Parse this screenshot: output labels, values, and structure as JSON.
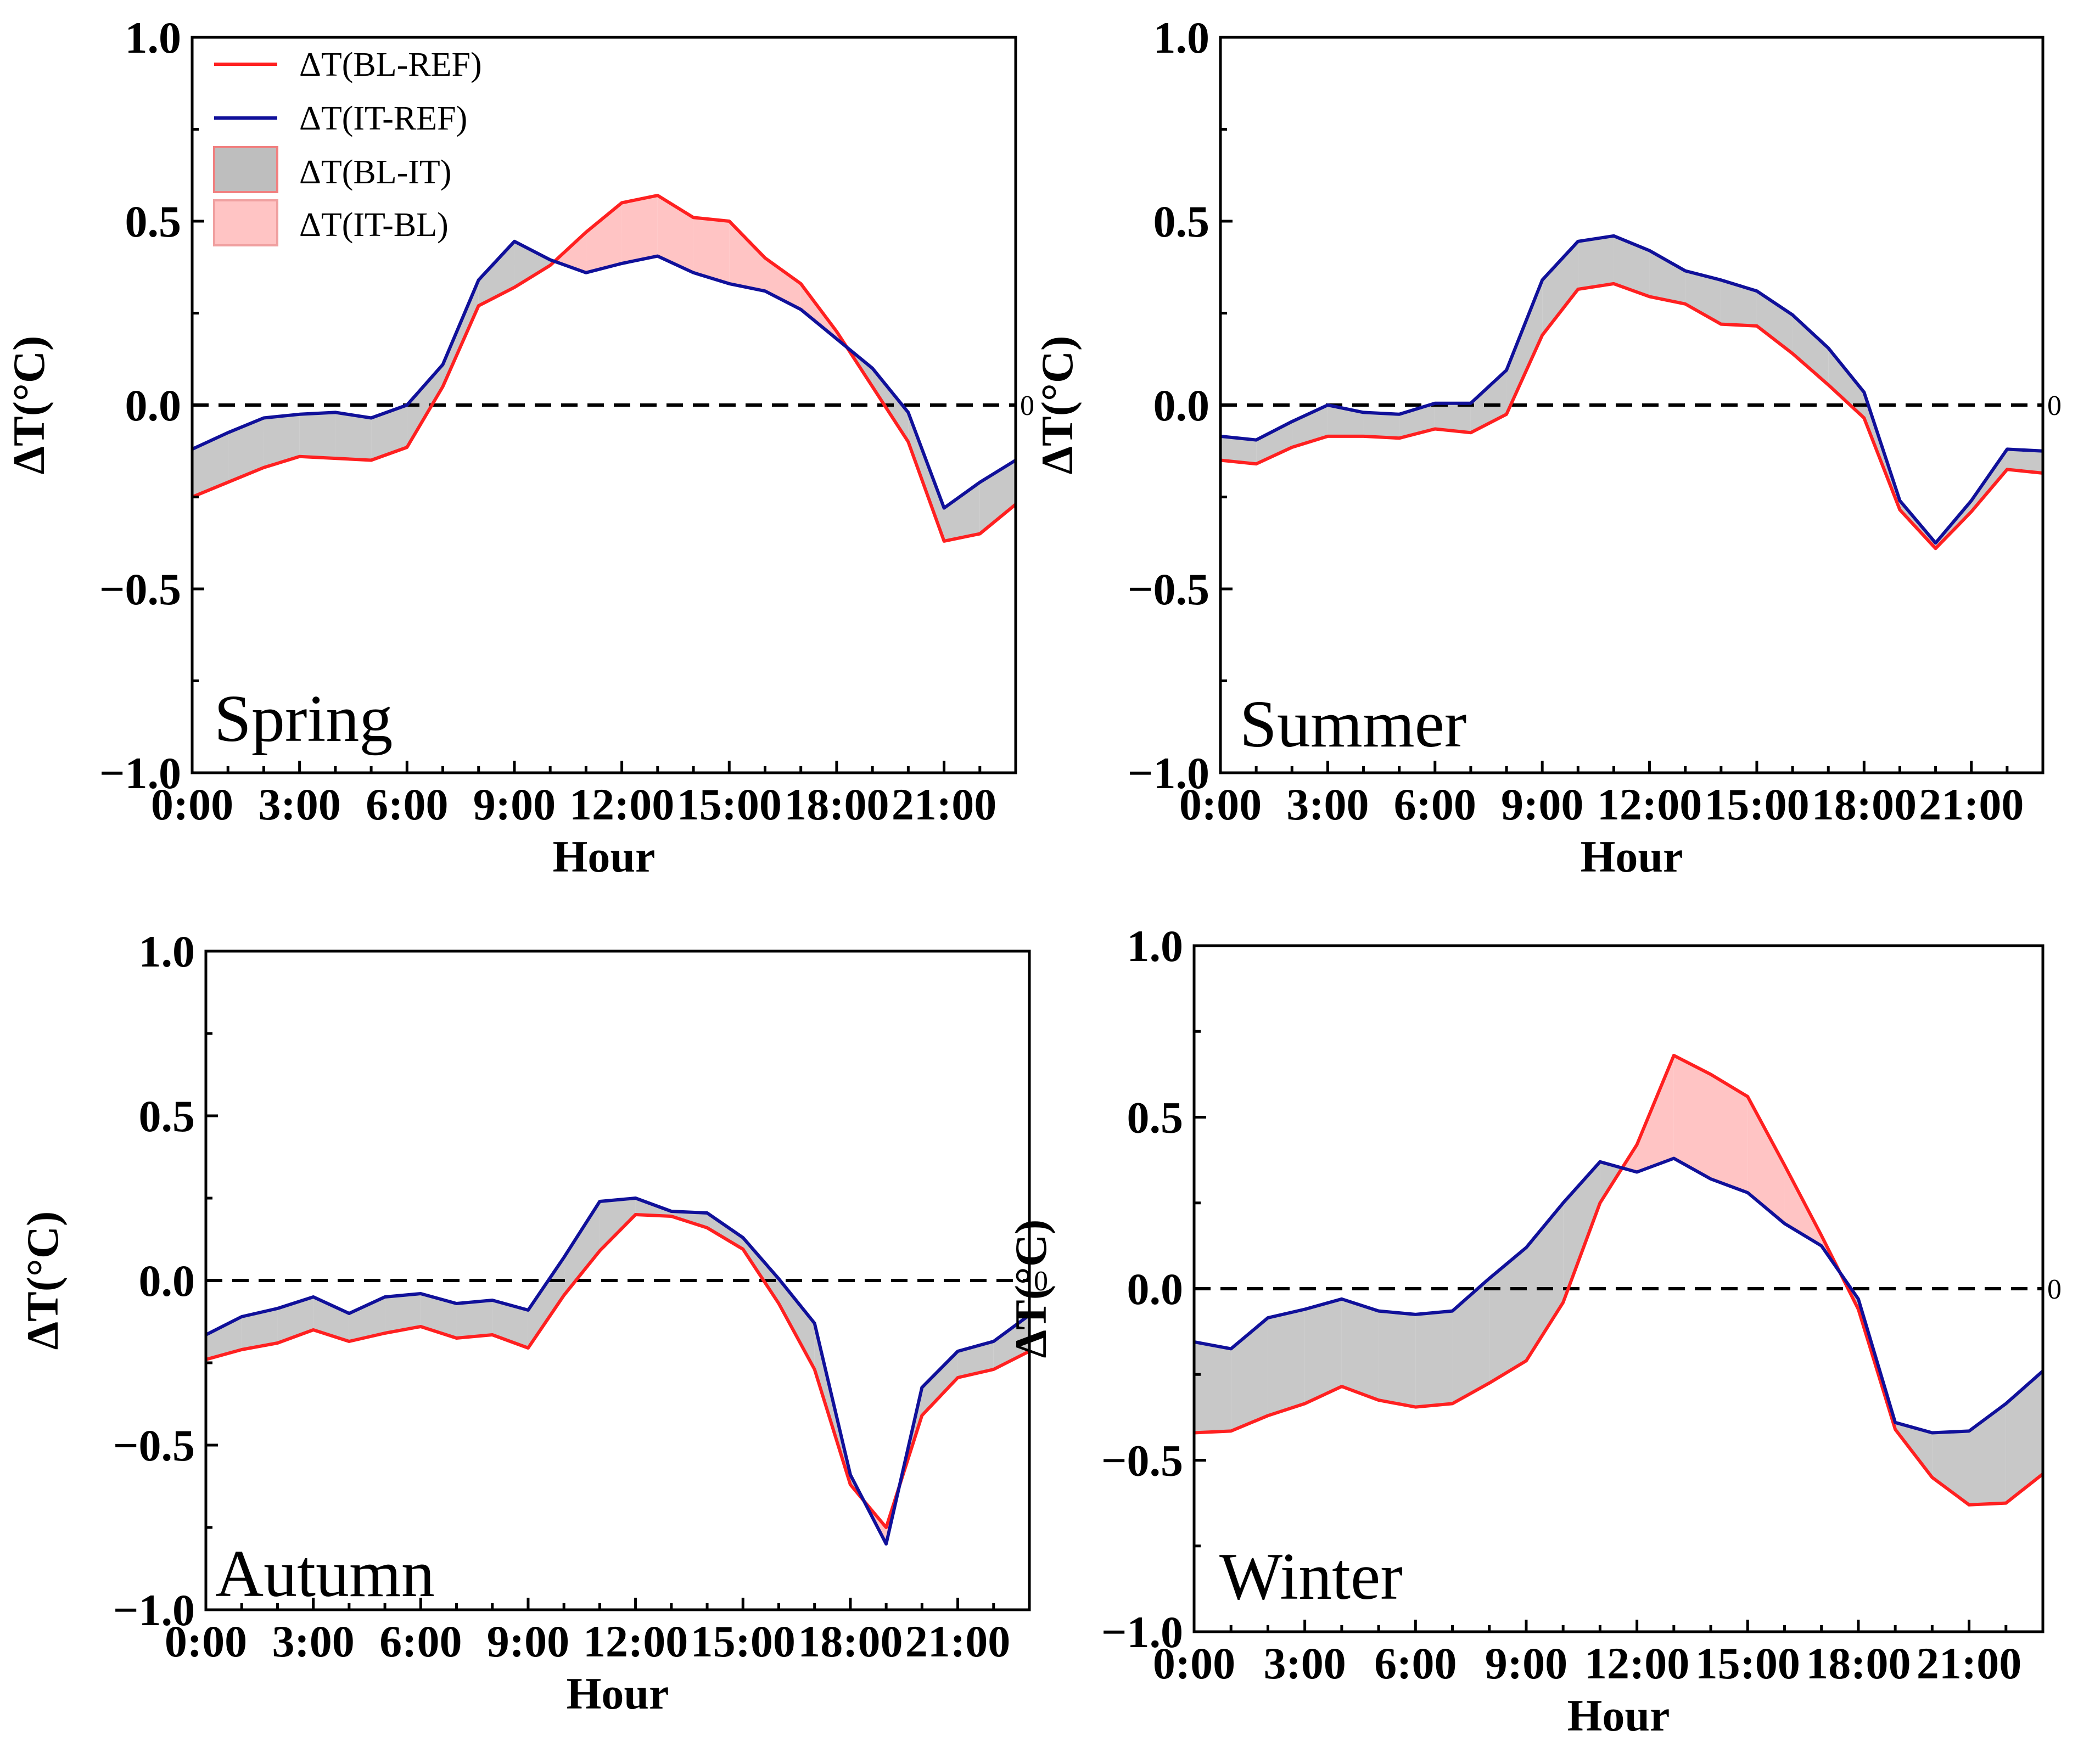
{
  "colors": {
    "bl_ref": "#ff2020",
    "it_ref": "#10109a",
    "bl_it_fill": "#c8c8c8",
    "it_bl_fill": "#ffc4c4",
    "bl_it_legend_fill": "#bebebe",
    "bl_it_legend_edge": "#f08080",
    "it_bl_legend_edge": "#f0a0a0",
    "zero_line": "#000000",
    "axes": "#000000"
  },
  "legend": {
    "bl_ref": "ΔT(BL-REF)",
    "it_ref": "ΔT(IT-REF)",
    "bl_it": "ΔT(BL-IT)",
    "it_bl": "ΔT(IT-BL)"
  },
  "chart_data": [
    {
      "type": "line",
      "panel": "Spring",
      "label": "Spring",
      "xlabel": "Hour",
      "ylabel": "ΔT(°C)",
      "ylim": [
        -1.0,
        1.0
      ],
      "xlim": [
        0,
        23
      ],
      "yticks": [
        "1.0",
        "0.5",
        "0.0",
        "−0.5",
        "−1.0"
      ],
      "xticks": [
        "0:00",
        "3:00",
        "6:00",
        "9:00",
        "12:00",
        "15:00",
        "18:00",
        "21:00"
      ],
      "zero_label": "0",
      "legend_position": "top-left",
      "x": [
        0,
        1,
        2,
        3,
        4,
        5,
        6,
        7,
        8,
        9,
        10,
        11,
        12,
        13,
        14,
        15,
        16,
        17,
        18,
        19,
        20,
        21,
        22,
        23
      ],
      "series": [
        {
          "name": "ΔT(BL-REF)",
          "values": [
            -0.25,
            -0.21,
            -0.17,
            -0.14,
            -0.145,
            -0.15,
            -0.115,
            0.05,
            0.27,
            0.32,
            0.38,
            0.47,
            0.55,
            0.57,
            0.51,
            0.5,
            0.4,
            0.33,
            0.2,
            0.05,
            -0.1,
            -0.37,
            -0.35,
            -0.27
          ]
        },
        {
          "name": "ΔT(IT-REF)",
          "values": [
            -0.12,
            -0.075,
            -0.035,
            -0.025,
            -0.02,
            -0.035,
            0.0,
            0.11,
            0.34,
            0.445,
            0.395,
            0.36,
            0.385,
            0.405,
            0.36,
            0.33,
            0.31,
            0.26,
            0.18,
            0.1,
            -0.02,
            -0.28,
            -0.21,
            -0.15
          ]
        }
      ]
    },
    {
      "type": "line",
      "panel": "Summer",
      "label": "Summer",
      "xlabel": "Hour",
      "ylabel": "ΔT(°C)",
      "ylim": [
        -1.0,
        1.0
      ],
      "xlim": [
        0,
        23
      ],
      "yticks": [
        "1.0",
        "0.5",
        "0.0",
        "−0.5",
        "−1.0"
      ],
      "xticks": [
        "0:00",
        "3:00",
        "6:00",
        "9:00",
        "12:00",
        "15:00",
        "18:00",
        "21:00"
      ],
      "zero_label": "0",
      "x": [
        0,
        1,
        2,
        3,
        4,
        5,
        6,
        7,
        8,
        9,
        10,
        11,
        12,
        13,
        14,
        15,
        16,
        17,
        18,
        19,
        20,
        21,
        22,
        23
      ],
      "series": [
        {
          "name": "ΔT(BL-REF)",
          "values": [
            -0.15,
            -0.16,
            -0.115,
            -0.085,
            -0.085,
            -0.09,
            -0.065,
            -0.075,
            -0.025,
            0.19,
            0.315,
            0.33,
            0.295,
            0.275,
            0.22,
            0.215,
            0.14,
            0.055,
            -0.035,
            -0.285,
            -0.39,
            -0.29,
            -0.175,
            -0.185
          ]
        },
        {
          "name": "ΔT(IT-REF)",
          "values": [
            -0.085,
            -0.095,
            -0.045,
            0.0,
            -0.02,
            -0.025,
            0.005,
            0.005,
            0.095,
            0.34,
            0.445,
            0.46,
            0.42,
            0.365,
            0.34,
            0.31,
            0.245,
            0.155,
            0.035,
            -0.26,
            -0.375,
            -0.26,
            -0.12,
            -0.125
          ]
        }
      ]
    },
    {
      "type": "line",
      "panel": "Autumn",
      "label": "Autumn",
      "xlabel": "Hour",
      "ylabel": "ΔT(°C)",
      "ylim": [
        -1.0,
        1.0
      ],
      "xlim": [
        0,
        23
      ],
      "yticks": [
        "1.0",
        "0.5",
        "0.0",
        "−0.5",
        "−1.0"
      ],
      "xticks": [
        "0:00",
        "3:00",
        "6:00",
        "9:00",
        "12:00",
        "15:00",
        "18:00",
        "21:00"
      ],
      "zero_label": "0",
      "x": [
        0,
        1,
        2,
        3,
        4,
        5,
        6,
        7,
        8,
        9,
        10,
        11,
        12,
        13,
        14,
        15,
        16,
        17,
        18,
        19,
        20,
        21,
        22,
        23
      ],
      "series": [
        {
          "name": "ΔT(BL-REF)",
          "values": [
            -0.24,
            -0.21,
            -0.19,
            -0.15,
            -0.185,
            -0.16,
            -0.14,
            -0.175,
            -0.165,
            -0.205,
            -0.045,
            0.09,
            0.2,
            0.195,
            0.16,
            0.095,
            -0.07,
            -0.27,
            -0.62,
            -0.75,
            -0.41,
            -0.295,
            -0.27,
            -0.215
          ]
        },
        {
          "name": "ΔT(IT-REF)",
          "values": [
            -0.165,
            -0.11,
            -0.085,
            -0.05,
            -0.1,
            -0.05,
            -0.04,
            -0.07,
            -0.06,
            -0.09,
            0.07,
            0.24,
            0.25,
            0.21,
            0.205,
            0.13,
            0.005,
            -0.13,
            -0.59,
            -0.8,
            -0.325,
            -0.215,
            -0.185,
            -0.105
          ]
        }
      ]
    },
    {
      "type": "line",
      "panel": "Winter",
      "label": "Winter",
      "xlabel": "Hour",
      "ylabel": "ΔT(°C)",
      "ylim": [
        -1.0,
        1.0
      ],
      "xlim": [
        0,
        23
      ],
      "yticks": [
        "1.0",
        "0.5",
        "0.0",
        "−0.5",
        "−1.0"
      ],
      "xticks": [
        "0:00",
        "3:00",
        "6:00",
        "9:00",
        "12:00",
        "15:00",
        "18:00",
        "21:00"
      ],
      "zero_label": "0",
      "x": [
        0,
        1,
        2,
        3,
        4,
        5,
        6,
        7,
        8,
        9,
        10,
        11,
        12,
        13,
        14,
        15,
        16,
        17,
        18,
        19,
        20,
        21,
        22,
        23
      ],
      "series": [
        {
          "name": "ΔT(BL-REF)",
          "values": [
            -0.42,
            -0.415,
            -0.37,
            -0.335,
            -0.285,
            -0.325,
            -0.345,
            -0.335,
            -0.275,
            -0.21,
            -0.04,
            0.25,
            0.42,
            0.68,
            0.625,
            0.56,
            0.36,
            0.155,
            -0.06,
            -0.41,
            -0.55,
            -0.63,
            -0.625,
            -0.54
          ]
        },
        {
          "name": "ΔT(IT-REF)",
          "values": [
            -0.155,
            -0.175,
            -0.085,
            -0.06,
            -0.03,
            -0.065,
            -0.075,
            -0.065,
            0.03,
            0.12,
            0.25,
            0.37,
            0.34,
            0.38,
            0.32,
            0.28,
            0.19,
            0.125,
            -0.03,
            -0.39,
            -0.42,
            -0.415,
            -0.335,
            -0.24
          ]
        }
      ]
    }
  ]
}
